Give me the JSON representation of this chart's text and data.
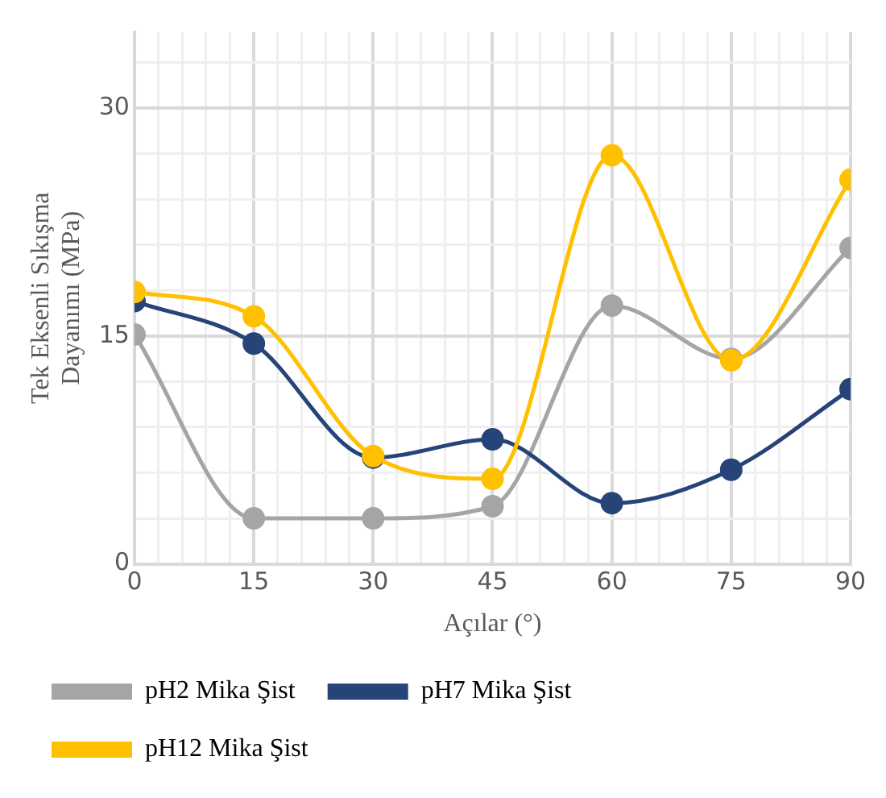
{
  "chart_data": {
    "type": "line",
    "xlabel": "Açılar (°)",
    "ylabel": "Tek Eksenli Sıkışma Dayanımı (MPa)",
    "x": [
      0,
      15,
      30,
      45,
      60,
      75,
      90
    ],
    "series": [
      {
        "name": "pH2 Mika Şist",
        "color": "#a5a5a5",
        "values": [
          15.1,
          3.0,
          3.0,
          3.8,
          17.0,
          13.5,
          20.8
        ]
      },
      {
        "name": "pH7 Mika Şist",
        "color": "#264478",
        "values": [
          17.3,
          14.5,
          7.0,
          8.2,
          4.0,
          6.2,
          11.5
        ]
      },
      {
        "name": "pH12 Mika Şist",
        "color": "#ffc000",
        "values": [
          17.9,
          16.3,
          7.1,
          5.6,
          26.9,
          13.4,
          25.3
        ]
      }
    ],
    "xlim": [
      0,
      90
    ],
    "xticks": [
      0,
      {
        "value": 3,
        "label": null
      },
      {
        "value": 6,
        "label": null
      },
      {
        "value": 9,
        "label": null
      },
      {
        "value": 12,
        "label": null
      },
      15,
      {
        "value": 18,
        "label": null
      },
      {
        "value": 21,
        "label": null
      },
      {
        "value": 24,
        "label": null
      },
      {
        "value": 27,
        "label": null
      },
      30,
      {
        "value": 33,
        "label": null
      },
      {
        "value": 36,
        "label": null
      },
      {
        "value": 39,
        "label": null
      },
      {
        "value": 42,
        "label": null
      },
      45,
      {
        "value": 48,
        "label": null
      },
      {
        "value": 51,
        "label": null
      },
      {
        "value": 54,
        "label": null
      },
      {
        "value": 57,
        "label": null
      },
      60,
      {
        "value": 63,
        "label": null
      },
      {
        "value": 66,
        "label": null
      },
      {
        "value": 69,
        "label": null
      },
      {
        "value": 72,
        "label": null
      },
      75,
      {
        "value": 78,
        "label": null
      },
      {
        "value": 81,
        "label": null
      },
      {
        "value": 84,
        "label": null
      },
      {
        "value": 87,
        "label": null
      },
      90
    ],
    "ylim": [
      0,
      35
    ],
    "yticks": [
      0,
      {
        "value": 3,
        "label": null
      },
      {
        "value": 6,
        "label": null
      },
      {
        "value": 9,
        "label": null
      },
      {
        "value": 12,
        "label": null
      },
      15,
      {
        "value": 18,
        "label": null
      },
      {
        "value": 21,
        "label": null
      },
      {
        "value": 24,
        "label": null
      },
      {
        "value": 27,
        "label": null
      },
      30,
      {
        "value": 33,
        "label": null
      }
    ],
    "grid": true,
    "legend": "bottom",
    "marker": "circle",
    "line_style": "solid"
  }
}
